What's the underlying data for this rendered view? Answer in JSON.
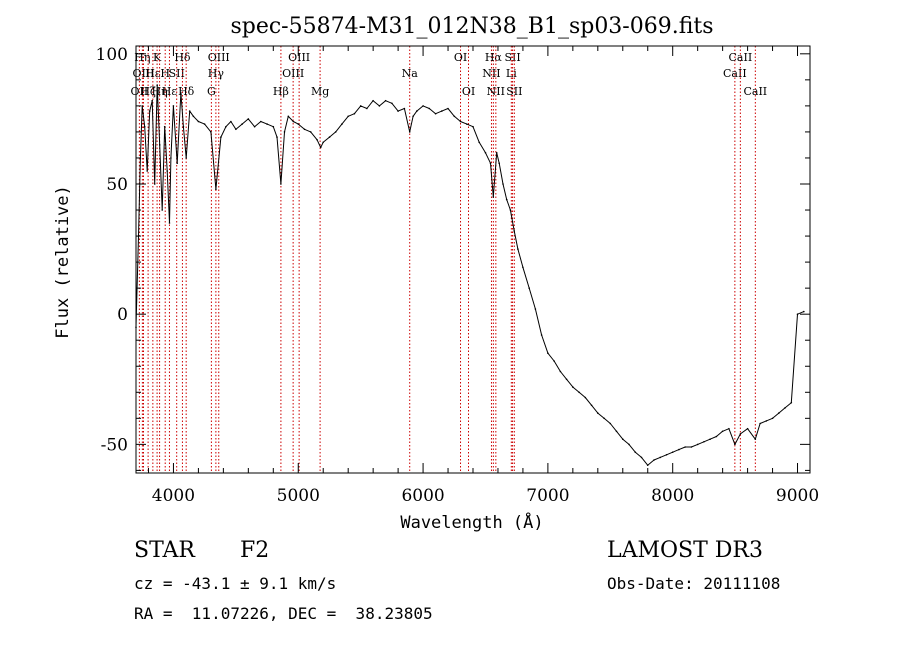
{
  "chart_data": {
    "type": "line",
    "title": "spec-55874-M31_012N38_B1_sp03-069.fits",
    "xlabel": "Wavelength (Å)",
    "ylabel": "Flux (relative)",
    "xlim": [
      3700,
      9100
    ],
    "ylim": [
      -61,
      103
    ],
    "xticks": [
      4000,
      5000,
      6000,
      7000,
      8000,
      9000
    ],
    "yticks": [
      -50,
      0,
      50,
      100
    ],
    "xtick_labels": [
      "4000",
      "5000",
      "6000",
      "7000",
      "8000",
      "9000"
    ],
    "ytick_labels": [
      "-50",
      "0",
      "50",
      "100"
    ],
    "series": [
      {
        "name": "flux",
        "x": [
          3700,
          3720,
          3735,
          3750,
          3770,
          3790,
          3810,
          3830,
          3850,
          3870,
          3890,
          3910,
          3930,
          3950,
          3968,
          3980,
          4000,
          4030,
          4060,
          4080,
          4102,
          4130,
          4160,
          4200,
          4250,
          4300,
          4340,
          4380,
          4420,
          4460,
          4500,
          4550,
          4600,
          4650,
          4700,
          4750,
          4800,
          4830,
          4861,
          4890,
          4920,
          4960,
          5000,
          5050,
          5100,
          5150,
          5180,
          5200,
          5250,
          5300,
          5350,
          5400,
          5450,
          5500,
          5550,
          5600,
          5650,
          5700,
          5750,
          5800,
          5850,
          5893,
          5920,
          5950,
          6000,
          6050,
          6100,
          6150,
          6200,
          6250,
          6300,
          6350,
          6400,
          6450,
          6500,
          6540,
          6563,
          6590,
          6610,
          6640,
          6670,
          6700,
          6730,
          6760,
          6800,
          6850,
          6900,
          6950,
          7000,
          7050,
          7100,
          7150,
          7200,
          7250,
          7300,
          7350,
          7400,
          7450,
          7500,
          7550,
          7600,
          7650,
          7700,
          7750,
          7800,
          7850,
          7900,
          7950,
          8000,
          8050,
          8100,
          8150,
          8200,
          8250,
          8300,
          8350,
          8400,
          8450,
          8498,
          8542,
          8600,
          8662,
          8700,
          8750,
          8800,
          8850,
          8900,
          8950,
          9000,
          9050
        ],
        "values": [
          -5,
          30,
          60,
          80,
          72,
          55,
          78,
          82,
          50,
          88,
          65,
          40,
          72,
          55,
          35,
          60,
          80,
          58,
          85,
          72,
          60,
          78,
          76,
          74,
          73,
          70,
          48,
          68,
          72,
          74,
          71,
          73,
          75,
          72,
          74,
          73,
          72,
          68,
          50,
          70,
          76,
          74,
          73,
          71,
          70,
          67,
          64,
          66,
          68,
          70,
          73,
          76,
          77,
          80,
          79,
          82,
          80,
          82,
          81,
          78,
          79,
          70,
          76,
          78,
          80,
          79,
          77,
          78,
          79,
          76,
          74,
          73,
          72,
          66,
          62,
          58,
          45,
          62,
          58,
          50,
          44,
          40,
          32,
          25,
          18,
          10,
          2,
          -8,
          -15,
          -18,
          -22,
          -25,
          -28,
          -30,
          -32,
          -35,
          -38,
          -40,
          -42,
          -45,
          -48,
          -50,
          -53,
          -55,
          -58,
          -56,
          -55,
          -54,
          -53,
          -52,
          -51,
          -51,
          -50,
          -49,
          -48,
          -47,
          -45,
          -44,
          -50,
          -46,
          -44,
          -48,
          -42,
          -41,
          -40,
          -38,
          -36,
          -34,
          0,
          1
        ]
      }
    ],
    "line_markers": [
      {
        "label": "OII",
        "wavelength": 3727,
        "row": 3
      },
      {
        "label": "Hη",
        "wavelength": 3751,
        "row": 1
      },
      {
        "label": "OIII",
        "wavelength": 3760,
        "row": 2
      },
      {
        "label": "Hζ",
        "wavelength": 3797,
        "row": 3
      },
      {
        "label": "Hε",
        "wavelength": 3835,
        "row": 2
      },
      {
        "label": "K",
        "wavelength": 3869,
        "row": 1
      },
      {
        "label": "Hη",
        "wavelength": 3889,
        "row": 3
      },
      {
        "label": "H",
        "wavelength": 3934,
        "row": 2
      },
      {
        "label": "Hε",
        "wavelength": 3968,
        "row": 3
      },
      {
        "label": "SII",
        "wavelength": 4026,
        "row": 2
      },
      {
        "label": "Hδ",
        "wavelength": 4072,
        "row": 1
      },
      {
        "label": "Hδ",
        "wavelength": 4102,
        "row": 3
      },
      {
        "label": "G",
        "wavelength": 4304,
        "row": 3
      },
      {
        "label": "Hγ",
        "wavelength": 4340,
        "row": 2
      },
      {
        "label": "OIII",
        "wavelength": 4363,
        "row": 1
      },
      {
        "label": "Hβ",
        "wavelength": 4861,
        "row": 3
      },
      {
        "label": "OIII",
        "wavelength": 4959,
        "row": 2
      },
      {
        "label": "OIII",
        "wavelength": 5007,
        "row": 1
      },
      {
        "label": "Mg",
        "wavelength": 5175,
        "row": 3
      },
      {
        "label": "Na",
        "wavelength": 5893,
        "row": 2
      },
      {
        "label": "OI",
        "wavelength": 6300,
        "row": 1
      },
      {
        "label": "OI",
        "wavelength": 6364,
        "row": 3
      },
      {
        "label": "NII",
        "wavelength": 6548,
        "row": 2
      },
      {
        "label": "Hα",
        "wavelength": 6563,
        "row": 1
      },
      {
        "label": "NII",
        "wavelength": 6583,
        "row": 3
      },
      {
        "label": "Li",
        "wavelength": 6707,
        "row": 2
      },
      {
        "label": "SII",
        "wavelength": 6717,
        "row": 1
      },
      {
        "label": "SII",
        "wavelength": 6731,
        "row": 3
      },
      {
        "label": "CaII",
        "wavelength": 8498,
        "row": 2
      },
      {
        "label": "CaII",
        "wavelength": 8542,
        "row": 1
      },
      {
        "label": "CaII",
        "wavelength": 8662,
        "row": 3
      }
    ]
  },
  "info": {
    "object_type": "STAR",
    "subclass": "F2",
    "survey": "LAMOST DR3",
    "redshift_line": "cz = -43.1 ± 9.1 km/s",
    "obs_date_line": "Obs-Date: 20111108",
    "coords_line": "RA =  11.07226, DEC =  38.23805"
  }
}
